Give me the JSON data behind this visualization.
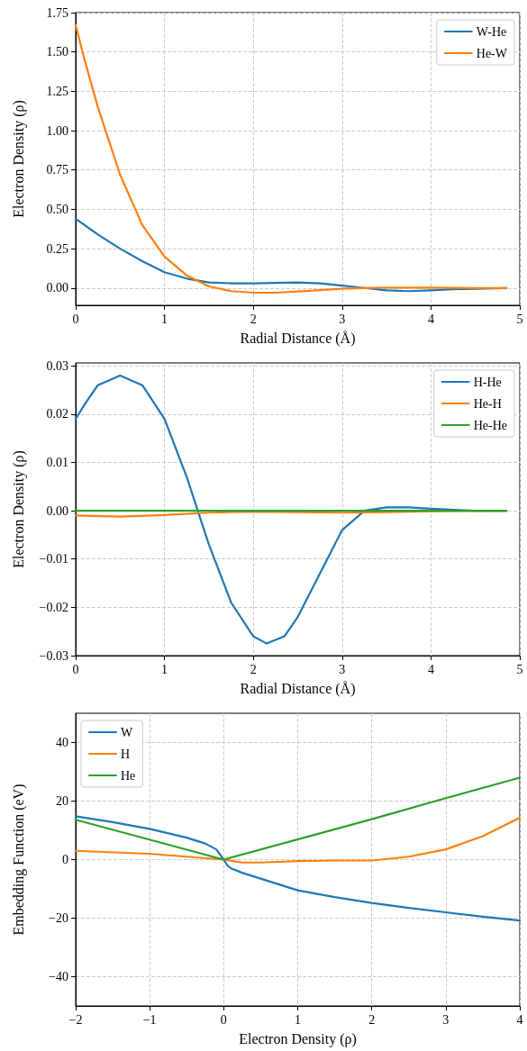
{
  "chart_data": [
    {
      "type": "line",
      "xlabel": "Radial Distance (Å)",
      "ylabel": "Electron Density (ρ)",
      "xlim": [
        0,
        5
      ],
      "ylim": [
        -0.11,
        1.75
      ],
      "xticks": [
        0,
        1,
        2,
        3,
        4,
        5
      ],
      "yticks": [
        {
          "value": 0,
          "label": "0.00"
        },
        {
          "value": 0.25,
          "label": "0.25"
        },
        {
          "value": 0.5,
          "label": "0.50"
        },
        {
          "value": 0.75,
          "label": "0.75"
        },
        {
          "value": 1,
          "label": "1.00"
        },
        {
          "value": 1.25,
          "label": "1.25"
        },
        {
          "value": 1.5,
          "label": "1.50"
        },
        {
          "value": 1.75,
          "label": "1.75"
        }
      ],
      "grid": true,
      "legend": "top right",
      "line_style": "solid",
      "marker": "none",
      "series": [
        {
          "name": "W-He",
          "color": "#1f77b4",
          "x": [
            0,
            0.25,
            0.5,
            0.75,
            1,
            1.25,
            1.5,
            1.75,
            2,
            2.25,
            2.5,
            2.75,
            3,
            3.25,
            3.5,
            3.75,
            4,
            4.25,
            4.85
          ],
          "values": [
            0.44,
            0.34,
            0.25,
            0.17,
            0.1,
            0.06,
            0.035,
            0.03,
            0.03,
            0.032,
            0.035,
            0.03,
            0.015,
            0,
            -0.015,
            -0.02,
            -0.015,
            -0.008,
            0
          ]
        },
        {
          "name": "He-W",
          "color": "#ff7f0e",
          "x": [
            0,
            0.1,
            0.25,
            0.5,
            0.75,
            1,
            1.25,
            1.5,
            1.75,
            2,
            2.25,
            2.5,
            2.75,
            3,
            3.25,
            3.5,
            4,
            4.5,
            4.85
          ],
          "values": [
            1.67,
            1.45,
            1.15,
            0.72,
            0.4,
            0.2,
            0.08,
            0.01,
            -0.02,
            -0.03,
            -0.03,
            -0.022,
            -0.013,
            -0.005,
            0,
            0.003,
            0.002,
            0,
            0
          ]
        }
      ]
    },
    {
      "type": "line",
      "xlabel": "Radial Distance (Å)",
      "ylabel": "Electron Density (ρ)",
      "xlim": [
        0,
        5
      ],
      "ylim": [
        -0.03,
        0.0306
      ],
      "xticks": [
        0,
        1,
        2,
        3,
        4,
        5
      ],
      "yticks": [
        {
          "value": -0.03,
          "label": "−0.03"
        },
        {
          "value": -0.02,
          "label": "−0.02"
        },
        {
          "value": -0.01,
          "label": "−0.01"
        },
        {
          "value": 0,
          "label": "0.00"
        },
        {
          "value": 0.01,
          "label": "0.01"
        },
        {
          "value": 0.02,
          "label": "0.02"
        },
        {
          "value": 0.03,
          "label": "0.03"
        }
      ],
      "grid": true,
      "legend": "top right",
      "line_style": "solid",
      "marker": "none",
      "series": [
        {
          "name": "H-He",
          "color": "#1f77b4",
          "x": [
            0,
            0.1,
            0.25,
            0.5,
            0.75,
            1,
            1.25,
            1.5,
            1.75,
            2,
            2.15,
            2.35,
            2.5,
            2.75,
            3,
            3.25,
            3.5,
            3.75,
            4,
            4.5,
            4.85
          ],
          "values": [
            0.019,
            0.022,
            0.026,
            0.028,
            0.026,
            0.019,
            0.007,
            -0.007,
            -0.019,
            -0.026,
            -0.0275,
            -0.026,
            -0.022,
            -0.013,
            -0.004,
            0,
            0.0007,
            0.0007,
            0.0004,
            0,
            0
          ]
        },
        {
          "name": "He-H",
          "color": "#ff7f0e",
          "x": [
            0,
            0.5,
            1,
            1.5,
            2,
            3,
            3.5,
            4,
            4.85
          ],
          "values": [
            -0.001,
            -0.0012,
            -0.0009,
            -0.0004,
            -0.0002,
            -0.0004,
            -0.0003,
            -0.0001,
            0
          ]
        },
        {
          "name": "He-He",
          "color": "#2ca02c",
          "x": [
            0,
            4.85
          ],
          "values": [
            0,
            0
          ]
        }
      ]
    },
    {
      "type": "line",
      "xlabel": "Electron Density (ρ)",
      "ylabel": "Embedding Function (eV)",
      "xlim": [
        -2,
        4
      ],
      "ylim": [
        -50,
        50
      ],
      "xticks": [
        {
          "value": -2,
          "label": "−2"
        },
        {
          "value": -1,
          "label": "−1"
        },
        0,
        1,
        2,
        3,
        4
      ],
      "yticks": [
        {
          "value": -40,
          "label": "−40"
        },
        {
          "value": -20,
          "label": "−20"
        },
        0,
        20,
        40
      ],
      "grid": true,
      "legend": "top left",
      "line_style": "solid",
      "marker": "none",
      "series": [
        {
          "name": "W",
          "color": "#1f77b4",
          "x": [
            -2,
            -1.5,
            -1,
            -0.5,
            -0.25,
            -0.1,
            0,
            0.05,
            0.1,
            0.25,
            0.5,
            1,
            1.5,
            2,
            2.5,
            3,
            3.5,
            4
          ],
          "values": [
            14.8,
            12.8,
            10.5,
            7.5,
            5.5,
            3.5,
            0,
            -2,
            -3,
            -4.5,
            -6.5,
            -10.5,
            -12.8,
            -14.8,
            -16.5,
            -18,
            -19.5,
            -20.8
          ]
        },
        {
          "name": "H",
          "color": "#ff7f0e",
          "x": [
            -2,
            -1,
            0,
            0.25,
            0.5,
            1,
            1.5,
            2,
            2.5,
            3,
            3.5,
            4
          ],
          "values": [
            3,
            2,
            0,
            -1,
            -1,
            -0.5,
            -0.3,
            -0.3,
            1,
            3.5,
            8,
            14.3
          ]
        },
        {
          "name": "He",
          "color": "#2ca02c",
          "x": [
            -2,
            0,
            2,
            3,
            4
          ],
          "values": [
            13.6,
            0,
            13.8,
            21,
            28
          ]
        }
      ]
    }
  ]
}
